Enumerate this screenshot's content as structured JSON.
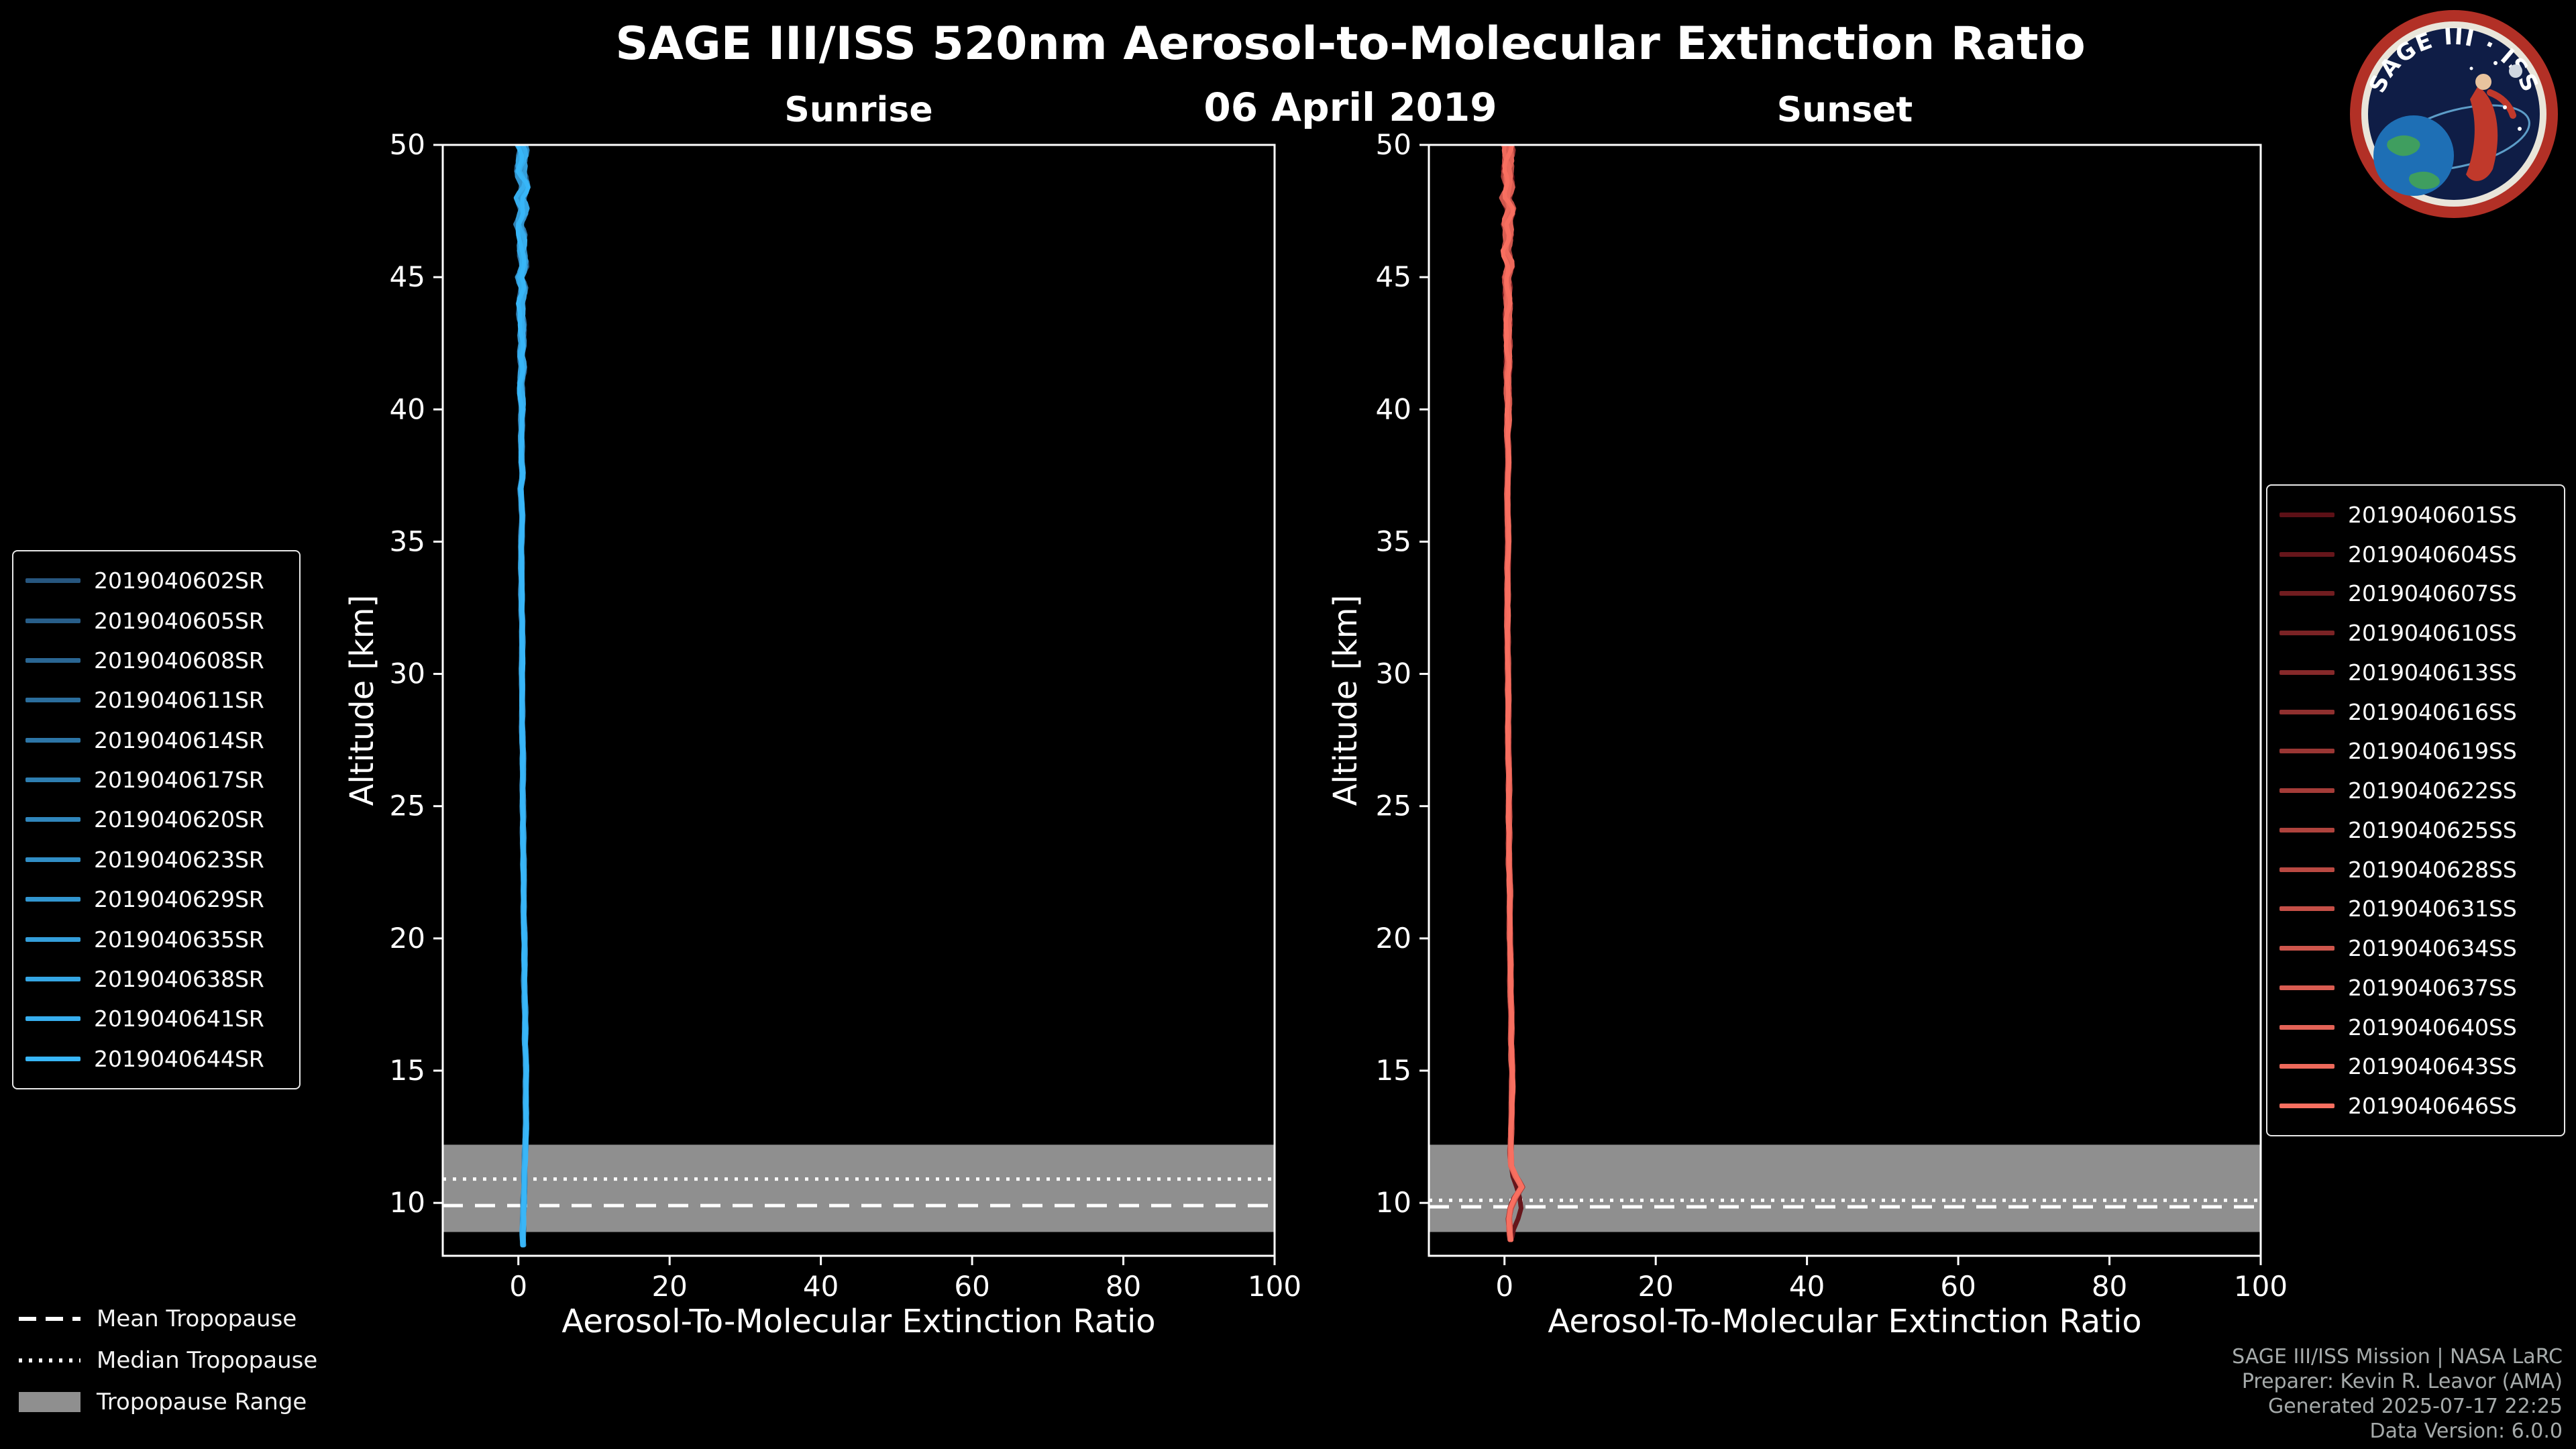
{
  "header": {
    "title": "SAGE III/ISS 520nm Aerosol-to-Molecular Extinction Ratio",
    "date": "06 April 2019"
  },
  "logo": {
    "title": "SAGE III · ISS"
  },
  "chart_data": [
    {
      "type": "line",
      "title": "Sunrise",
      "xlabel": "Aerosol-To-Molecular Extinction Ratio",
      "ylabel": "Altitude [km]",
      "xlim": [
        -10,
        100
      ],
      "ylim": [
        8,
        50
      ],
      "xticks": [
        0,
        20,
        40,
        60,
        80,
        100
      ],
      "yticks": [
        10,
        15,
        20,
        25,
        30,
        35,
        40,
        45,
        50
      ],
      "grid": false,
      "legend_position": "outside-left",
      "tropopause": {
        "mean_km": 9.9,
        "median_km": 10.9,
        "range_km": [
          8.9,
          12.2
        ]
      },
      "profile": {
        "altitude": [
          8.4,
          9,
          10,
          11,
          12,
          13,
          14,
          15,
          16,
          17,
          18,
          19,
          20,
          21,
          22,
          23,
          24,
          25,
          26,
          27,
          28,
          29,
          30,
          31,
          32,
          33,
          34,
          35,
          36,
          37,
          37.5,
          38,
          39,
          40,
          41,
          41.5,
          42,
          43,
          44,
          44.5,
          45,
          45.5,
          46,
          46.5,
          47,
          47.5,
          48,
          48.5,
          49,
          49.5,
          50
        ],
        "ratio": [
          0.6,
          0.6,
          0.7,
          0.8,
          0.9,
          1.0,
          1.0,
          1.0,
          0.9,
          0.9,
          0.8,
          0.8,
          0.8,
          0.7,
          0.7,
          0.7,
          0.6,
          0.6,
          0.6,
          0.6,
          0.5,
          0.5,
          0.5,
          0.5,
          0.5,
          0.4,
          0.4,
          0.4,
          0.5,
          0.3,
          0.6,
          0.4,
          0.4,
          0.5,
          0.3,
          0.6,
          0.4,
          0.5,
          0.3,
          0.7,
          0.2,
          0.8,
          0.4,
          0.6,
          0.1,
          0.7,
          0.3,
          0.9,
          0.2,
          0.6,
          0.4
        ]
      },
      "series": [
        {
          "name": "2019040602SR",
          "color": "#27567f"
        },
        {
          "name": "2019040605SR",
          "color": "#285e89"
        },
        {
          "name": "2019040608SR",
          "color": "#2a6693"
        },
        {
          "name": "2019040611SR",
          "color": "#2b6e9d"
        },
        {
          "name": "2019040614SR",
          "color": "#2d76a7"
        },
        {
          "name": "2019040617SR",
          "color": "#2e7eb1"
        },
        {
          "name": "2019040620SR",
          "color": "#3086bc"
        },
        {
          "name": "2019040623SR",
          "color": "#318ec6"
        },
        {
          "name": "2019040629SR",
          "color": "#3296d0"
        },
        {
          "name": "2019040635SR",
          "color": "#349eda"
        },
        {
          "name": "2019040638SR",
          "color": "#35a6e4"
        },
        {
          "name": "2019040641SR",
          "color": "#37aeee"
        },
        {
          "name": "2019040644SR",
          "color": "#38b6f8"
        }
      ]
    },
    {
      "type": "line",
      "title": "Sunset",
      "xlabel": "Aerosol-To-Molecular Extinction Ratio",
      "ylabel": "Altitude [km]",
      "xlim": [
        -10,
        100
      ],
      "ylim": [
        8,
        50
      ],
      "xticks": [
        0,
        20,
        40,
        60,
        80,
        100
      ],
      "yticks": [
        10,
        15,
        20,
        25,
        30,
        35,
        40,
        45,
        50
      ],
      "grid": false,
      "legend_position": "outside-right",
      "tropopause": {
        "mean_km": 9.85,
        "median_km": 10.1,
        "range_km": [
          8.9,
          12.2
        ]
      },
      "profile": {
        "altitude": [
          8.6,
          9,
          9.4,
          9.8,
          10.2,
          10.6,
          11,
          11.4,
          12,
          13,
          14,
          15,
          16,
          17,
          18,
          19,
          20,
          21,
          22,
          23,
          24,
          25,
          26,
          27,
          28,
          29,
          30,
          31,
          32,
          33,
          34,
          35,
          36,
          37,
          38,
          39,
          40,
          41,
          42,
          43,
          44,
          45,
          45.5,
          46,
          46.5,
          47,
          47.5,
          48,
          48.5,
          49,
          49.5,
          50
        ],
        "ratio": [
          0.8,
          0.7,
          0.6,
          0.8,
          1.4,
          2.3,
          1.5,
          0.9,
          0.8,
          0.9,
          1.0,
          1.0,
          0.9,
          0.9,
          0.8,
          0.8,
          0.7,
          0.7,
          0.7,
          0.6,
          0.6,
          0.6,
          0.6,
          0.5,
          0.5,
          0.5,
          0.5,
          0.4,
          0.4,
          0.4,
          0.4,
          0.5,
          0.4,
          0.4,
          0.5,
          0.4,
          0.5,
          0.4,
          0.5,
          0.4,
          0.5,
          0.3,
          0.7,
          0.2,
          0.6,
          0.3,
          0.8,
          0.2,
          0.7,
          0.3,
          0.6,
          0.4
        ]
      },
      "dark_profile": {
        "altitude": [
          11.4,
          11,
          10.6,
          10.2,
          9.8,
          9.4,
          9.0,
          8.7
        ],
        "ratio": [
          0.9,
          1.1,
          1.6,
          2.0,
          2.2,
          1.8,
          1.2,
          1.0
        ]
      },
      "series": [
        {
          "name": "2019040601SS",
          "color": "#5c1016"
        },
        {
          "name": "2019040604SS",
          "color": "#66161b"
        },
        {
          "name": "2019040607SS",
          "color": "#711d20"
        },
        {
          "name": "2019040610SS",
          "color": "#7b2325"
        },
        {
          "name": "2019040613SS",
          "color": "#86292a"
        },
        {
          "name": "2019040616SS",
          "color": "#90302f"
        },
        {
          "name": "2019040619SS",
          "color": "#9a3634"
        },
        {
          "name": "2019040622SS",
          "color": "#a53c38"
        },
        {
          "name": "2019040625SS",
          "color": "#af433d"
        },
        {
          "name": "2019040628SS",
          "color": "#ba4942"
        },
        {
          "name": "2019040631SS",
          "color": "#c44f47"
        },
        {
          "name": "2019040634SS",
          "color": "#ce564c"
        },
        {
          "name": "2019040637SS",
          "color": "#d95c51"
        },
        {
          "name": "2019040640SS",
          "color": "#e36256"
        },
        {
          "name": "2019040643SS",
          "color": "#ee695b"
        },
        {
          "name": "2019040646SS",
          "color": "#f86f60"
        }
      ]
    }
  ],
  "tropopause_legend": {
    "mean": "Mean Tropopause",
    "median": "Median Tropopause",
    "range": "Tropopause Range",
    "band_color": "#8f8f8f"
  },
  "footer": {
    "lines": [
      "SAGE III/ISS Mission | NASA LaRC",
      "Preparer: Kevin R. Leavor (AMA)",
      "Generated 2025-07-17 22:25",
      "Data Version: 6.0.0"
    ]
  }
}
